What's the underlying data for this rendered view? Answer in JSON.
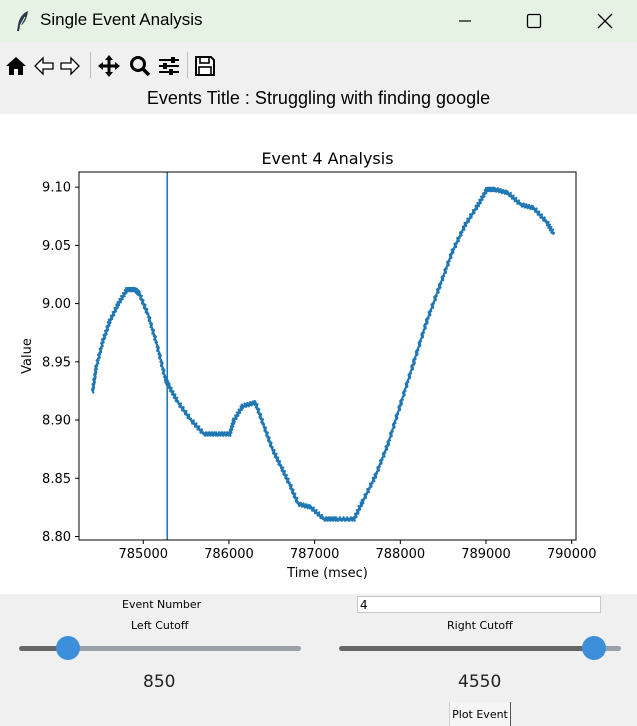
{
  "window": {
    "title": "Single Event Analysis"
  },
  "toolbar": {
    "icons": [
      "home-icon",
      "back-arrow-icon",
      "forward-arrow-icon",
      "pan-icon",
      "zoom-icon",
      "configure-subplots-icon",
      "save-icon"
    ]
  },
  "events_title": "Events Title : Struggling with finding google",
  "chart_data": {
    "type": "line",
    "title": "Event 4 Analysis",
    "xlabel": "Time (msec)",
    "ylabel": "Value",
    "xlim": [
      784250,
      790050
    ],
    "ylim": [
      8.797,
      9.113
    ],
    "x_ticks": [
      785000,
      786000,
      787000,
      788000,
      789000,
      790000
    ],
    "y_ticks": [
      8.8,
      8.85,
      8.9,
      8.95,
      9.0,
      9.05,
      9.1
    ],
    "x_tick_labels": [
      "785000",
      "786000",
      "787000",
      "788000",
      "789000",
      "790000"
    ],
    "y_tick_labels": [
      "8.80",
      "8.85",
      "8.90",
      "8.95",
      "9.00",
      "9.05",
      "9.10"
    ],
    "vertical_line_x": 785280,
    "line_color": "#1f77b4",
    "series": [
      {
        "x": [
          784400,
          784440,
          784520,
          784600,
          784700,
          784800,
          784900,
          784950,
          785050,
          785150,
          785250,
          785300,
          785400,
          785550,
          785700,
          785850,
          786000,
          786050,
          786150,
          786300,
          786400,
          786500,
          786600,
          786700,
          786800,
          786950,
          787100,
          787250,
          787450,
          787550,
          787700,
          787850,
          788000,
          788150,
          788300,
          788450,
          788600,
          788750,
          788900,
          789000,
          789100,
          789250,
          789400,
          789550,
          789700,
          789780
        ],
        "values": [
          8.925,
          8.945,
          8.968,
          8.985,
          9.0,
          9.012,
          9.012,
          9.008,
          8.99,
          8.965,
          8.935,
          8.928,
          8.915,
          8.9,
          8.888,
          8.888,
          8.888,
          8.9,
          8.912,
          8.915,
          8.895,
          8.875,
          8.86,
          8.845,
          8.828,
          8.825,
          8.815,
          8.815,
          8.815,
          8.83,
          8.852,
          8.88,
          8.915,
          8.95,
          8.985,
          9.015,
          9.045,
          9.068,
          9.085,
          9.098,
          9.098,
          9.095,
          9.085,
          9.082,
          9.07,
          9.06
        ]
      }
    ],
    "grid": false
  },
  "controls": {
    "event_number_label": "Event Number",
    "event_number_value": "4",
    "left_cutoff_label": "Left Cutoff",
    "right_cutoff_label": "Right Cutoff",
    "left_value": "850",
    "right_value": "4550",
    "left_slider_fraction": 0.175,
    "right_slider_fraction": 0.905,
    "plot_button_label": "Plot Event"
  }
}
